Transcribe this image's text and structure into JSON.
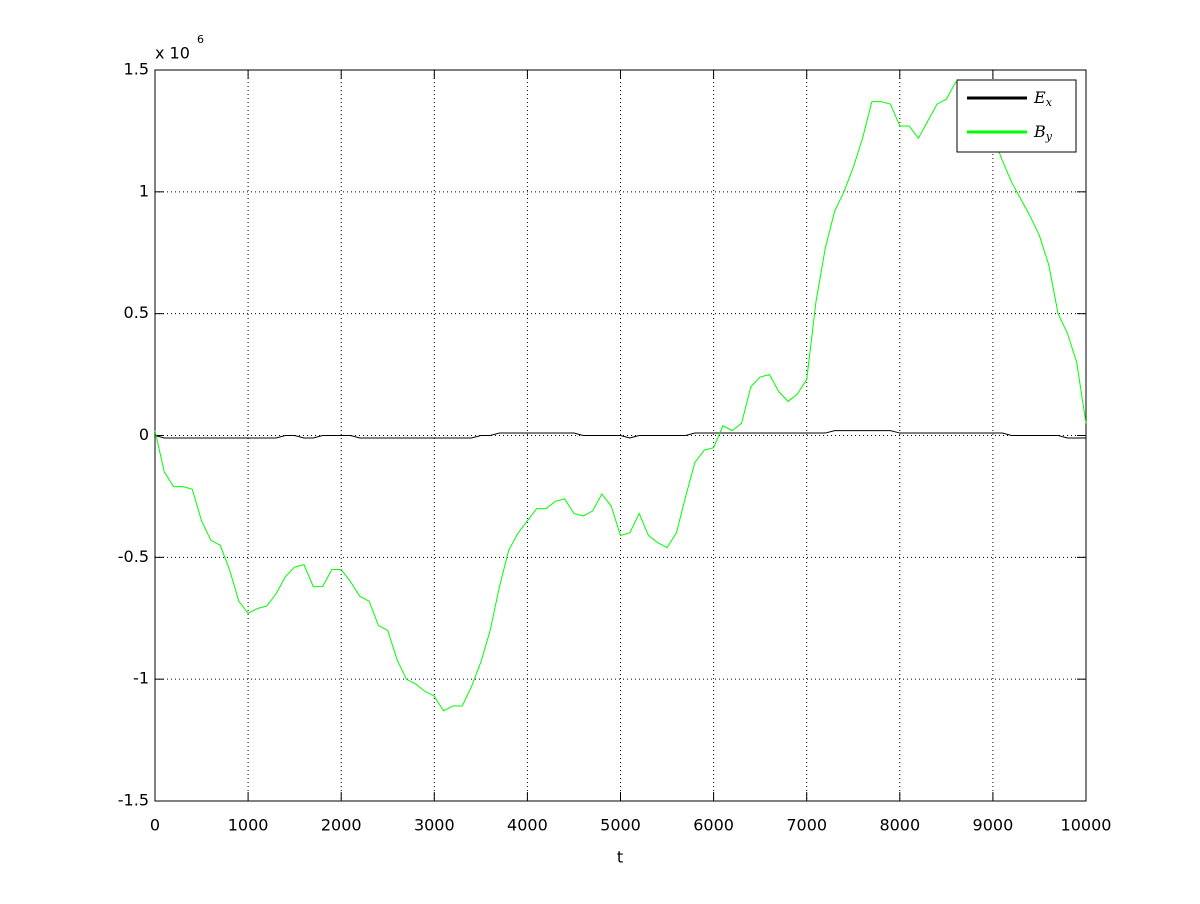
{
  "chart_data": {
    "type": "line",
    "xlabel": "t",
    "y_scale_base": "x 10",
    "y_scale_exponent": "6",
    "x": [
      0,
      100,
      200,
      300,
      400,
      500,
      600,
      700,
      800,
      900,
      1000,
      1100,
      1200,
      1300,
      1400,
      1500,
      1600,
      1700,
      1800,
      1900,
      2000,
      2100,
      2200,
      2300,
      2400,
      2500,
      2600,
      2700,
      2800,
      2900,
      3000,
      3100,
      3200,
      3300,
      3400,
      3500,
      3600,
      3700,
      3800,
      3900,
      4000,
      4100,
      4200,
      4300,
      4400,
      4500,
      4600,
      4700,
      4800,
      4900,
      5000,
      5100,
      5200,
      5300,
      5400,
      5500,
      5600,
      5700,
      5800,
      5900,
      6000,
      6100,
      6200,
      6300,
      6400,
      6500,
      6600,
      6700,
      6800,
      6900,
      7000,
      7100,
      7200,
      7300,
      7400,
      7500,
      7600,
      7700,
      7800,
      7900,
      8000,
      8100,
      8200,
      8300,
      8400,
      8500,
      8600,
      8700,
      8800,
      8900,
      9000,
      9100,
      9200,
      9300,
      9400,
      9500,
      9600,
      9700,
      9800,
      9900,
      10000
    ],
    "series": [
      {
        "name": "E_x",
        "color": "#000000",
        "values": [
          0,
          -0.01,
          -0.01,
          -0.01,
          -0.01,
          -0.01,
          -0.01,
          -0.01,
          -0.01,
          -0.01,
          -0.01,
          -0.01,
          -0.01,
          -0.01,
          0,
          0,
          -0.01,
          -0.01,
          0,
          0,
          0,
          0,
          -0.01,
          -0.01,
          -0.01,
          -0.01,
          -0.01,
          -0.01,
          -0.01,
          -0.01,
          -0.01,
          -0.01,
          -0.01,
          -0.01,
          -0.01,
          0,
          0,
          0.01,
          0.01,
          0.01,
          0.01,
          0.01,
          0.01,
          0.01,
          0.01,
          0.01,
          0,
          0,
          0,
          0,
          0,
          -0.01,
          0,
          0,
          0,
          0,
          0,
          0,
          0.01,
          0.01,
          0.01,
          0.01,
          0.01,
          0.01,
          0.01,
          0.01,
          0.01,
          0.01,
          0.01,
          0.01,
          0.01,
          0.01,
          0.01,
          0.02,
          0.02,
          0.02,
          0.02,
          0.02,
          0.02,
          0.02,
          0.01,
          0.01,
          0.01,
          0.01,
          0.01,
          0.01,
          0.01,
          0.01,
          0.01,
          0.01,
          0.01,
          0.01,
          0,
          0,
          0,
          0,
          0,
          0,
          -0.01,
          -0.01,
          -0.01
        ]
      },
      {
        "name": "B_y",
        "color": "#00ff00",
        "values": [
          0.02,
          -0.15,
          -0.21,
          -0.21,
          -0.22,
          -0.35,
          -0.43,
          -0.45,
          -0.55,
          -0.68,
          -0.73,
          -0.71,
          -0.7,
          -0.65,
          -0.58,
          -0.54,
          -0.53,
          -0.62,
          -0.62,
          -0.55,
          -0.55,
          -0.6,
          -0.66,
          -0.68,
          -0.78,
          -0.8,
          -0.92,
          -1,
          -1.02,
          -1.05,
          -1.07,
          -1.13,
          -1.11,
          -1.11,
          -1.03,
          -0.93,
          -0.8,
          -0.62,
          -0.47,
          -0.4,
          -0.35,
          -0.3,
          -0.3,
          -0.27,
          -0.26,
          -0.32,
          -0.33,
          -0.31,
          -0.24,
          -0.29,
          -0.41,
          -0.4,
          -0.32,
          -0.41,
          -0.44,
          -0.46,
          -0.4,
          -0.25,
          -0.11,
          -0.06,
          -0.05,
          0.04,
          0.02,
          0.05,
          0.2,
          0.24,
          0.25,
          0.18,
          0.14,
          0.17,
          0.23,
          0.55,
          0.77,
          0.92,
          1,
          1.1,
          1.22,
          1.37,
          1.37,
          1.36,
          1.27,
          1.27,
          1.22,
          1.29,
          1.36,
          1.38,
          1.45,
          1.43,
          1.45,
          1.3,
          1.23,
          1.13,
          1.04,
          0.97,
          0.9,
          0.82,
          0.7,
          0.5,
          0.42,
          0.3,
          0.05
        ]
      }
    ],
    "xlim": [
      0,
      10000
    ],
    "xticks": [
      0,
      1000,
      2000,
      3000,
      4000,
      5000,
      6000,
      7000,
      8000,
      9000,
      10000
    ],
    "ylim": [
      -1.5,
      1.5
    ],
    "yticks": [
      -1.5,
      -1,
      -0.5,
      0,
      0.5,
      1,
      1.5
    ],
    "grid": true,
    "legend_position": "northeast"
  }
}
